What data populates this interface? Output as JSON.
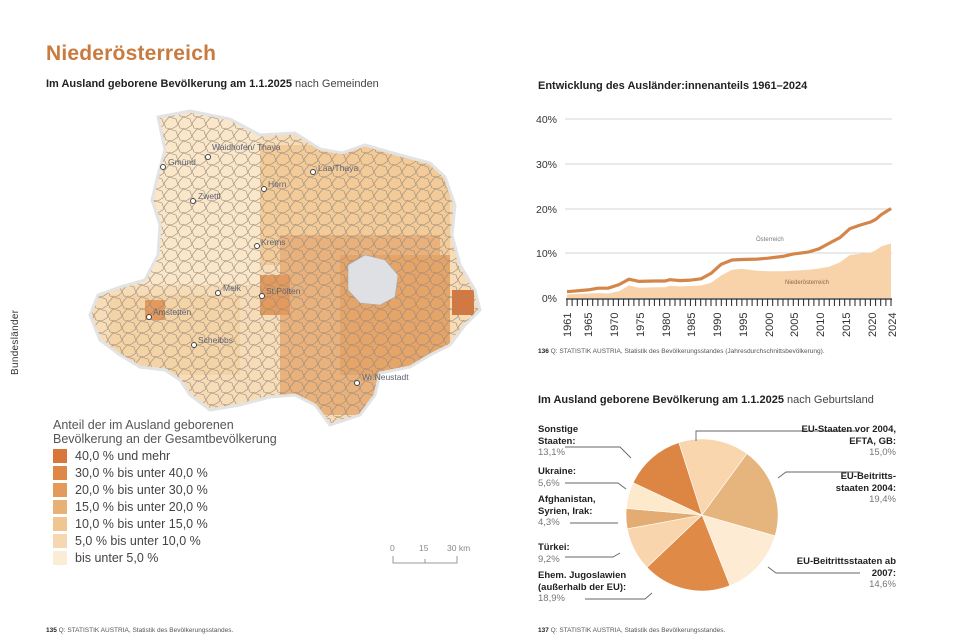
{
  "page": {
    "title": "Niederösterreich",
    "side_label": "Bundesländer",
    "accent_color": "#c97a3e"
  },
  "map_section": {
    "subtitle_bold": "Im Ausland geborene Bevölkerung am 1.1.2025",
    "subtitle_rest": " nach Gemeinden",
    "cities": [
      "Waidhofen/ Thaya",
      "Gmünd",
      "Laa/Thaya",
      "Horn",
      "Zwettl",
      "Krems",
      "Melk",
      "St.Pölten",
      "Amstetten",
      "Scheibbs",
      "Wr.Neustadt"
    ],
    "legend": {
      "title": "Anteil der im Ausland geborenen Bevölkerung an der Gesamtbevölkerung",
      "items": [
        {
          "label": "40,0 % und mehr",
          "color": "#d9773a"
        },
        {
          "label": "30,0 % bis unter 40,0 %",
          "color": "#de8848"
        },
        {
          "label": "20,0 % bis unter 30,0 %",
          "color": "#e39a5c"
        },
        {
          "label": "15,0 % bis unter 20,0 %",
          "color": "#e8b077"
        },
        {
          "label": "10,0 % bis unter 15,0 %",
          "color": "#efc590"
        },
        {
          "label": "5,0 % bis unter 10,0 %",
          "color": "#f5d8b0"
        },
        {
          "label": "bis unter 5,0 %",
          "color": "#fbecd6"
        }
      ]
    },
    "scale_bar": {
      "labels": [
        "0",
        "15",
        "30 km"
      ]
    },
    "footnote_number": "135",
    "footnote_text": " Q: STATISTIK AUSTRIA, Statistik des Bevölkerungsstandes."
  },
  "line_section": {
    "footnote_number": "136",
    "footnote_text": " Q: STATISTIK AUSTRIA, Statistik des Bevölkerungsstandes (Jahresdurchschnittsbevölkerung)."
  },
  "pie_section": {
    "subtitle_bold": "Im Ausland geborene Bevölkerung am 1.1.2025",
    "subtitle_rest": " nach Geburtsland",
    "footnote_number": "137",
    "footnote_text": " Q: STATISTIK AUSTRIA, Statistik des Bevölkerungsstandes."
  },
  "chart_data": [
    {
      "type": "area",
      "title": "Entwicklung des Ausländer:innenanteils 1961–2024",
      "xlabel": "",
      "ylabel": "",
      "ylim": [
        0,
        40
      ],
      "yticks": [
        "0%",
        "10%",
        "20%",
        "30%",
        "40%"
      ],
      "xticks": [
        "1961",
        "1965",
        "1970",
        "1975",
        "1980",
        "1985",
        "1990",
        "1995",
        "2000",
        "2005",
        "2010",
        "2015",
        "2020",
        "2024"
      ],
      "grid": true,
      "x": [
        1961,
        1965,
        1967,
        1969,
        1971,
        1973,
        1975,
        1978,
        1980,
        1981,
        1983,
        1985,
        1987,
        1989,
        1991,
        1993,
        1995,
        1998,
        2000,
        2003,
        2005,
        2008,
        2010,
        2012,
        2014,
        2016,
        2018,
        2020,
        2021,
        2022,
        2024
      ],
      "series": [
        {
          "name": "Österreich",
          "style": "line",
          "color": "#d4864a",
          "values": [
            1.4,
            1.8,
            2.2,
            2.2,
            3.0,
            4.2,
            3.7,
            3.8,
            3.8,
            4.1,
            3.9,
            4.0,
            4.3,
            5.5,
            7.5,
            8.5,
            8.6,
            8.7,
            8.9,
            9.3,
            9.8,
            10.3,
            11.0,
            12.2,
            13.5,
            15.5,
            16.3,
            17.0,
            17.6,
            18.6,
            20.0
          ]
        },
        {
          "name": "Niederösterreich",
          "style": "area",
          "color": "#f8d3a9",
          "values": [
            0.8,
            1.0,
            1.1,
            1.0,
            1.5,
            2.8,
            2.3,
            2.4,
            2.4,
            2.7,
            2.6,
            2.7,
            2.8,
            3.4,
            5.0,
            6.3,
            6.5,
            6.1,
            6.0,
            6.0,
            6.1,
            6.3,
            6.6,
            7.0,
            8.0,
            9.6,
            9.9,
            10.2,
            10.7,
            11.5,
            12.2
          ]
        }
      ],
      "annotations": [
        "Österreich",
        "Niederösterreich"
      ]
    },
    {
      "type": "pie",
      "title": "Im Ausland geborene Bevölkerung am 1.1.2025 nach Geburtsland",
      "slices": [
        {
          "label": "EU-Staaten vor 2004, EFTA, GB:",
          "value": 15.0,
          "display": "15,0%",
          "color": "#f9d6ae"
        },
        {
          "label": "EU-Beitritts- staaten 2004:",
          "value": 19.4,
          "display": "19,4%",
          "color": "#e6b57d"
        },
        {
          "label": "EU-Beitrittsstaaten ab 2007:",
          "value": 14.6,
          "display": "14,6%",
          "color": "#fdecd3"
        },
        {
          "label": "Ehem. Jugoslawien (außerhalb der EU):",
          "value": 18.9,
          "display": "18,9%",
          "color": "#e08a48"
        },
        {
          "label": "Türkei:",
          "value": 9.2,
          "display": "9,2%",
          "color": "#f8d5ac"
        },
        {
          "label": "Afghanistan, Syrien, Irak:",
          "value": 4.3,
          "display": "4,3%",
          "color": "#e2ac72"
        },
        {
          "label": "Ukraine:",
          "value": 5.6,
          "display": "5,6%",
          "color": "#fde9cc"
        },
        {
          "label": "Sonstige Staaten:",
          "value": 13.1,
          "display": "13,1%",
          "color": "#dd8644"
        }
      ]
    }
  ]
}
